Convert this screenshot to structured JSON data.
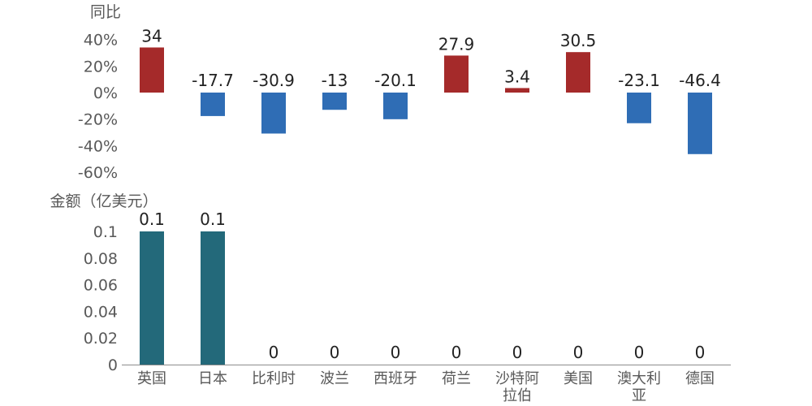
{
  "chart_data": [
    {
      "type": "bar",
      "ylabel": "同比",
      "unit": "%",
      "categories": [
        "英国",
        "日本",
        "比利时",
        "波兰",
        "西班牙",
        "荷兰",
        "沙特阿拉伯",
        "美国",
        "澳大利亚",
        "德国"
      ],
      "values": [
        34,
        -17.7,
        -30.9,
        -13,
        -20.1,
        27.9,
        3.4,
        30.5,
        -23.1,
        -46.4
      ],
      "value_labels": [
        "34",
        "-17.7",
        "-30.9",
        "-13",
        "-20.1",
        "27.9",
        "3.4",
        "30.5",
        "-23.1",
        "-46.4"
      ],
      "ylim": [
        -60,
        40
      ],
      "yticks": [
        40,
        20,
        0,
        -20,
        -40,
        -60
      ],
      "ytick_labels": [
        "40%",
        "20%",
        "0%",
        "-20%",
        "-40%",
        "-60%"
      ],
      "grid": false,
      "colors": {
        "positive": "#A52A2A",
        "negative": "#2F6DB5"
      }
    },
    {
      "type": "bar",
      "ylabel": "金额（亿美元）",
      "categories": [
        "英国",
        "日本",
        "比利时",
        "波兰",
        "西班牙",
        "荷兰",
        "沙特阿拉伯",
        "美国",
        "澳大利亚",
        "德国"
      ],
      "category_lines": [
        [
          "英国"
        ],
        [
          "日本"
        ],
        [
          "比利时"
        ],
        [
          "波兰"
        ],
        [
          "西班牙"
        ],
        [
          "荷兰"
        ],
        [
          "沙特阿",
          "拉伯"
        ],
        [
          "美国"
        ],
        [
          "澳大利",
          "亚"
        ],
        [
          "德国"
        ]
      ],
      "values": [
        0.1,
        0.1,
        0,
        0,
        0,
        0,
        0,
        0,
        0,
        0
      ],
      "value_labels": [
        "0.1",
        "0.1",
        "0",
        "0",
        "0",
        "0",
        "0",
        "0",
        "0",
        "0"
      ],
      "ylim": [
        0,
        0.1
      ],
      "yticks": [
        0.1,
        0.08,
        0.06,
        0.04,
        0.02,
        0
      ],
      "ytick_labels": [
        "0.1",
        "0.08",
        "0.06",
        "0.04",
        "0.02",
        "0"
      ],
      "grid": false,
      "colors": {
        "bar": "#23697A",
        "axis": "#8C8C8C"
      }
    }
  ]
}
